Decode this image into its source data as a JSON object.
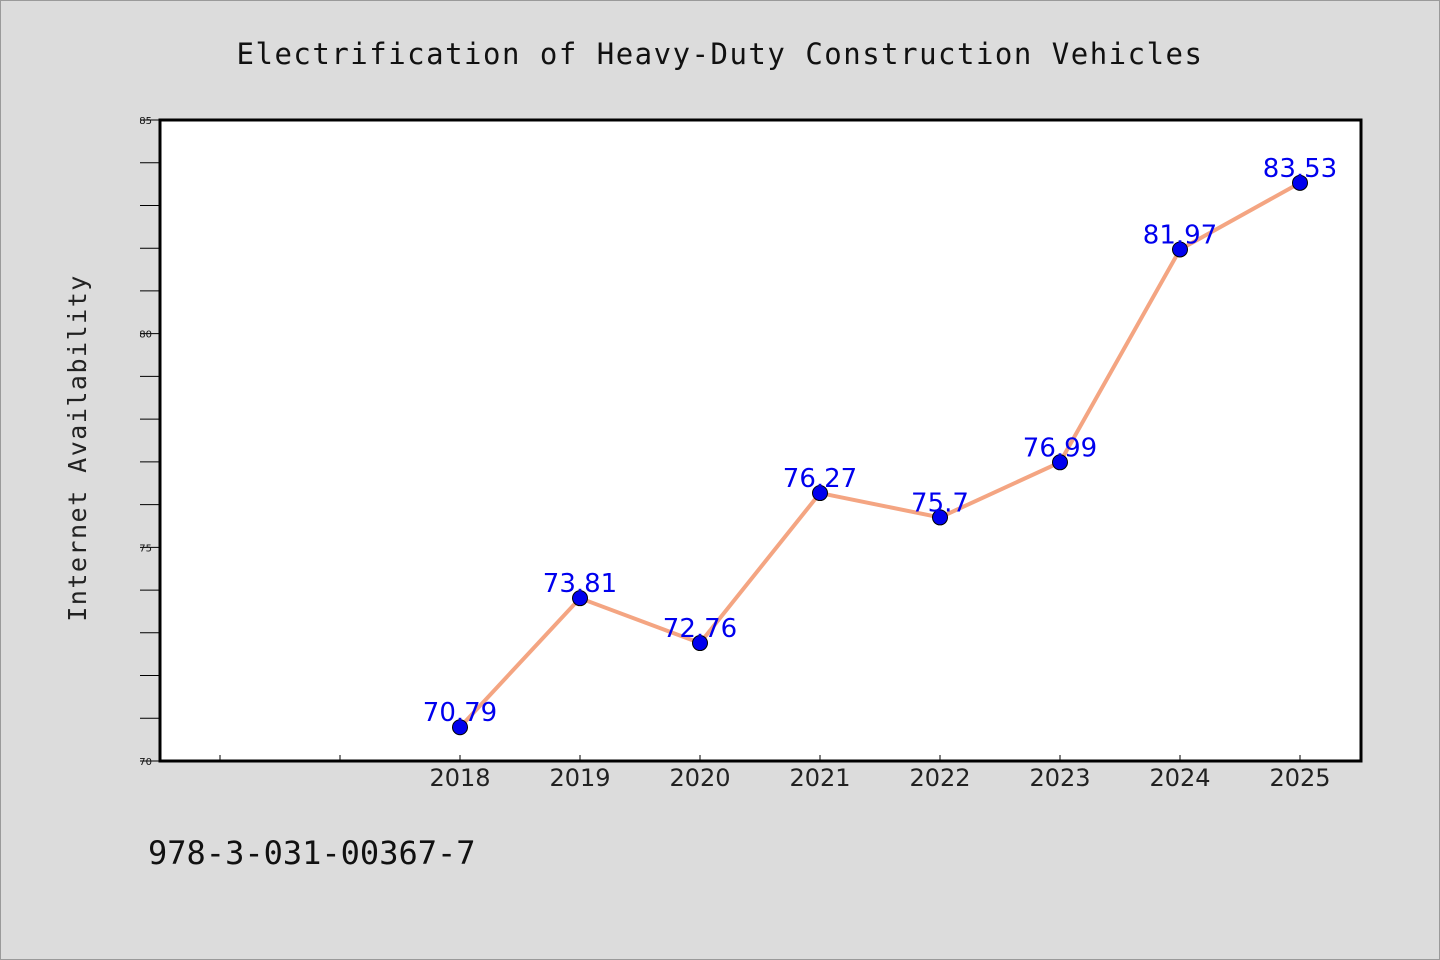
{
  "chart_data": {
    "type": "line",
    "title": "Electrification of Heavy-Duty Construction Vehicles",
    "xlabel": "",
    "ylabel": "Internet Availability",
    "categories": [
      "2018",
      "2019",
      "2020",
      "2021",
      "2022",
      "2023",
      "2024",
      "2025"
    ],
    "series": [
      {
        "values": [
          70.79,
          73.81,
          72.76,
          76.27,
          75.7,
          76.99,
          81.97,
          83.53
        ],
        "labels": [
          "70.79",
          "73.81",
          "72.76",
          "76.27",
          "75.7",
          "76.99",
          "81.97",
          "83.53"
        ]
      }
    ],
    "ylim": [
      70,
      85
    ],
    "yticks": [
      70,
      75,
      80,
      85
    ],
    "ytick_labels": [
      "70",
      "75",
      "80",
      "85"
    ],
    "grid": false,
    "legend": "none",
    "colors": {
      "line": "#f4a582",
      "marker": "#0000ee",
      "data_label": "#0000ee",
      "plot_background": "#ffffff",
      "figure_background": "#dcdcdc"
    }
  },
  "footnote": "978-3-031-00367-7"
}
